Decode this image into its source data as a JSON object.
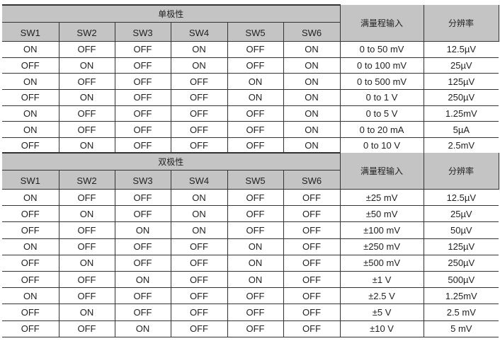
{
  "sections": [
    {
      "title": "单极性",
      "range_header": "满量程输入",
      "resolution_header": "分辨率",
      "switch_headers": [
        "SW1",
        "SW2",
        "SW3",
        "SW4",
        "SW5",
        "SW6"
      ],
      "rows": [
        {
          "sw": [
            "ON",
            "OFF",
            "OFF",
            "ON",
            "OFF",
            "ON"
          ],
          "range": "0 to 50 mV",
          "resolution": "12.5µV"
        },
        {
          "sw": [
            "OFF",
            "ON",
            "OFF",
            "ON",
            "OFF",
            "ON"
          ],
          "range": "0 to 100 mV",
          "resolution": "25µV"
        },
        {
          "sw": [
            "ON",
            "OFF",
            "OFF",
            "OFF",
            "ON",
            "ON"
          ],
          "range": "0 to 500 mV",
          "resolution": "125µV"
        },
        {
          "sw": [
            "OFF",
            "ON",
            "OFF",
            "OFF",
            "ON",
            "ON"
          ],
          "range": "0 to 1 V",
          "resolution": "250µV"
        },
        {
          "sw": [
            "ON",
            "OFF",
            "OFF",
            "OFF",
            "OFF",
            "ON"
          ],
          "range": "0 to 5 V",
          "resolution": "1.25mV"
        },
        {
          "sw": [
            "ON",
            "OFF",
            "OFF",
            "OFF",
            "OFF",
            "ON"
          ],
          "range": "0 to 20 mA",
          "resolution": "5µA"
        },
        {
          "sw": [
            "OFF",
            "ON",
            "OFF",
            "OFF",
            "OFF",
            "ON"
          ],
          "range": "0 to 10 V",
          "resolution": "2.5mV"
        }
      ]
    },
    {
      "title": "双极性",
      "range_header": "满量程输入",
      "resolution_header": "分辨率",
      "switch_headers": [
        "SW1",
        "SW2",
        "SW3",
        "SW4",
        "SW5",
        "SW6"
      ],
      "rows": [
        {
          "sw": [
            "ON",
            "OFF",
            "OFF",
            "ON",
            "OFF",
            "OFF"
          ],
          "range": "±25 mV",
          "resolution": "12.5µV"
        },
        {
          "sw": [
            "OFF",
            "ON",
            "OFF",
            "ON",
            "OFF",
            "OFF"
          ],
          "range": "±50 mV",
          "resolution": "25µV"
        },
        {
          "sw": [
            "OFF",
            "OFF",
            "ON",
            "ON",
            "OFF",
            "OFF"
          ],
          "range": "±100 mV",
          "resolution": "50µV"
        },
        {
          "sw": [
            "ON",
            "OFF",
            "OFF",
            "OFF",
            "ON",
            "OFF"
          ],
          "range": "±250 mV",
          "resolution": "125µV"
        },
        {
          "sw": [
            "OFF",
            "ON",
            "OFF",
            "OFF",
            "ON",
            "OFF"
          ],
          "range": "±500 mV",
          "resolution": "250µV"
        },
        {
          "sw": [
            "OFF",
            "OFF",
            "ON",
            "OFF",
            "ON",
            "OFF"
          ],
          "range": "±1 V",
          "resolution": "500µV"
        },
        {
          "sw": [
            "ON",
            "OFF",
            "OFF",
            "OFF",
            "OFF",
            "OFF"
          ],
          "range": "±2.5 V",
          "resolution": "1.25mV"
        },
        {
          "sw": [
            "OFF",
            "ON",
            "OFF",
            "OFF",
            "OFF",
            "OFF"
          ],
          "range": "±5 V",
          "resolution": "2.5 mV"
        },
        {
          "sw": [
            "OFF",
            "OFF",
            "ON",
            "OFF",
            "OFF",
            "OFF"
          ],
          "range": "±10 V",
          "resolution": "5 mV"
        }
      ]
    }
  ],
  "colors": {
    "header_bg": "#c4c4c4",
    "border": "#333333"
  }
}
